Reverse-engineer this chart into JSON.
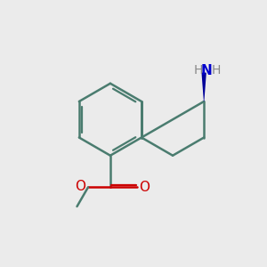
{
  "bg_color": "#ebebeb",
  "bond_color": "#4a7c6f",
  "bond_width": 1.8,
  "atom_colors": {
    "N": "#0000cc",
    "O": "#cc0000",
    "H_gray": "#888888"
  },
  "font_size_atom": 11,
  "font_size_H": 10,
  "wedge_color": "#000099"
}
